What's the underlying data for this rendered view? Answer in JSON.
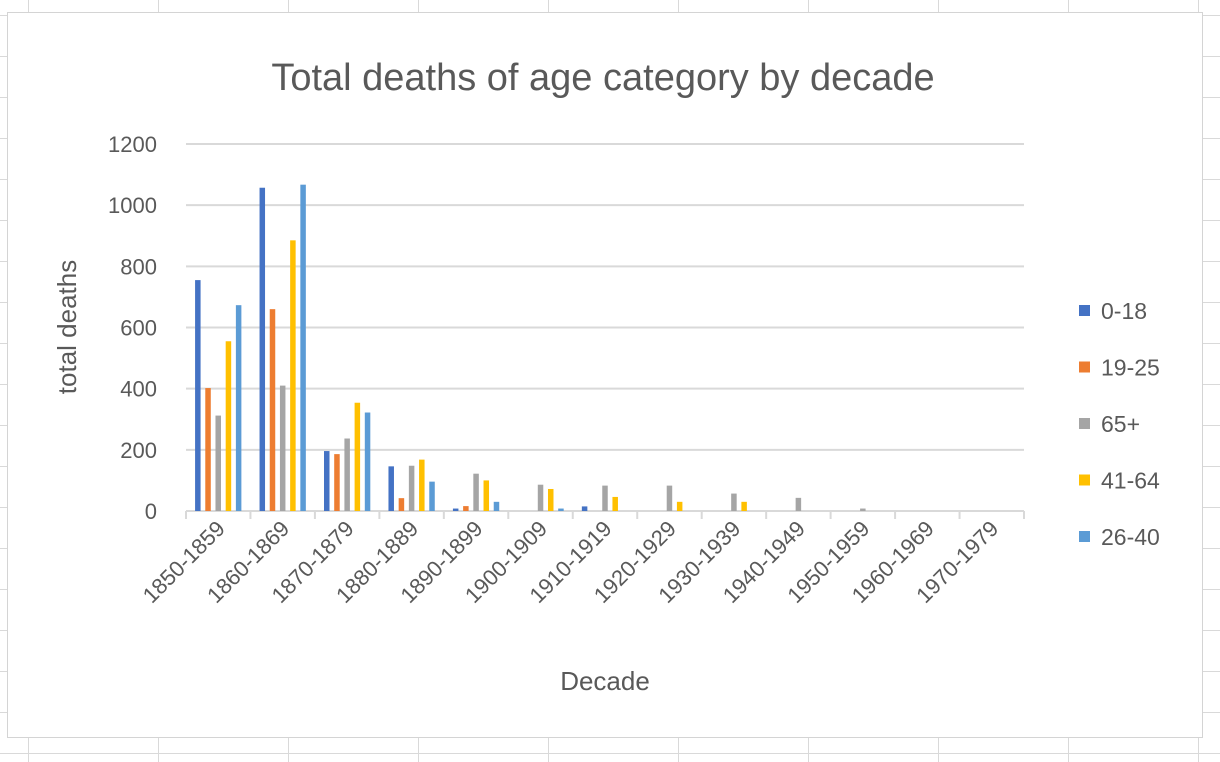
{
  "chart_data": {
    "type": "bar",
    "title": "Total deaths of age category by decade",
    "xlabel": "Decade",
    "ylabel": "total deaths",
    "ylim": [
      0,
      1200
    ],
    "yticks": [
      0,
      200,
      400,
      600,
      800,
      1000,
      1200
    ],
    "grid": true,
    "legend_position": "right",
    "categories": [
      "1850-1859",
      "1860-1869",
      "1870-1879",
      "1880-1889",
      "1890-1899",
      "1900-1909",
      "1910-1919",
      "1920-1929",
      "1930-1939",
      "1940-1949",
      "1950-1959",
      "1960-1969",
      "1970-1979"
    ],
    "series": [
      {
        "name": "0-18",
        "color": "#4472C4",
        "values": [
          755,
          1057,
          196,
          146,
          8,
          0,
          15,
          0,
          0,
          0,
          0,
          0,
          0
        ]
      },
      {
        "name": "19-25",
        "color": "#ED7D31",
        "values": [
          402,
          660,
          186,
          42,
          16,
          0,
          0,
          0,
          0,
          0,
          0,
          0,
          0
        ]
      },
      {
        "name": "65+",
        "color": "#A5A5A5",
        "values": [
          312,
          410,
          237,
          148,
          122,
          86,
          83,
          83,
          57,
          43,
          8,
          0,
          0
        ]
      },
      {
        "name": "41-64",
        "color": "#FFC000",
        "values": [
          555,
          885,
          354,
          168,
          100,
          72,
          46,
          30,
          30,
          0,
          0,
          0,
          0
        ]
      },
      {
        "name": "26-40",
        "color": "#5B9BD5",
        "values": [
          673,
          1067,
          322,
          96,
          30,
          8,
          0,
          0,
          0,
          0,
          0,
          0,
          0
        ]
      }
    ]
  }
}
